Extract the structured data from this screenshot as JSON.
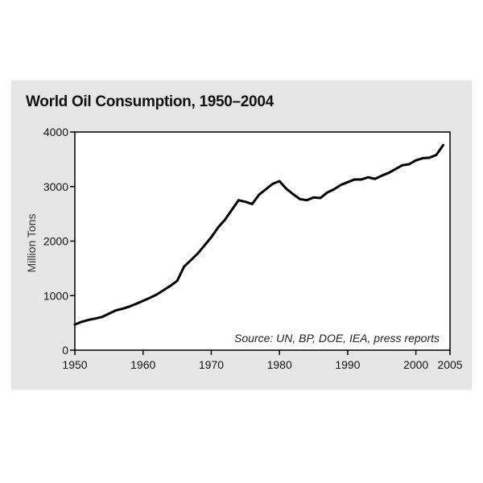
{
  "chart_data": {
    "type": "line",
    "title": "World Oil Consumption, 1950–2004",
    "xlabel": "",
    "ylabel": "Million Tons",
    "xlim": [
      1950,
      2005
    ],
    "ylim": [
      0,
      4000
    ],
    "x_ticks": [
      "1950",
      "1960",
      "1970",
      "1980",
      "1990",
      "2000",
      "2005"
    ],
    "y_ticks": [
      "0",
      "1000",
      "2000",
      "3000",
      "4000"
    ],
    "grid": false,
    "annotation": "Source: UN, BP, DOE, IEA, press reports",
    "series": [
      {
        "x": [
          1950,
          1951,
          1952,
          1953,
          1954,
          1955,
          1956,
          1957,
          1958,
          1959,
          1960,
          1961,
          1962,
          1963,
          1964,
          1965,
          1966,
          1967,
          1968,
          1969,
          1970,
          1971,
          1972,
          1973,
          1974,
          1975,
          1976,
          1977,
          1978,
          1979,
          1980,
          1981,
          1982,
          1983,
          1984,
          1985,
          1986,
          1987,
          1988,
          1989,
          1990,
          1991,
          1992,
          1993,
          1994,
          1995,
          1996,
          1997,
          1998,
          1999,
          2000,
          2001,
          2002,
          2003,
          2004
        ],
        "y": [
          470,
          520,
          555,
          580,
          610,
          670,
          730,
          760,
          800,
          850,
          905,
          960,
          1020,
          1100,
          1180,
          1270,
          1530,
          1650,
          1770,
          1920,
          2070,
          2250,
          2390,
          2570,
          2750,
          2720,
          2680,
          2850,
          2950,
          3050,
          3100,
          2960,
          2860,
          2770,
          2750,
          2800,
          2790,
          2890,
          2950,
          3030,
          3080,
          3130,
          3130,
          3170,
          3140,
          3200,
          3250,
          3320,
          3390,
          3410,
          3480,
          3520,
          3530,
          3580,
          3760
        ]
      }
    ]
  }
}
